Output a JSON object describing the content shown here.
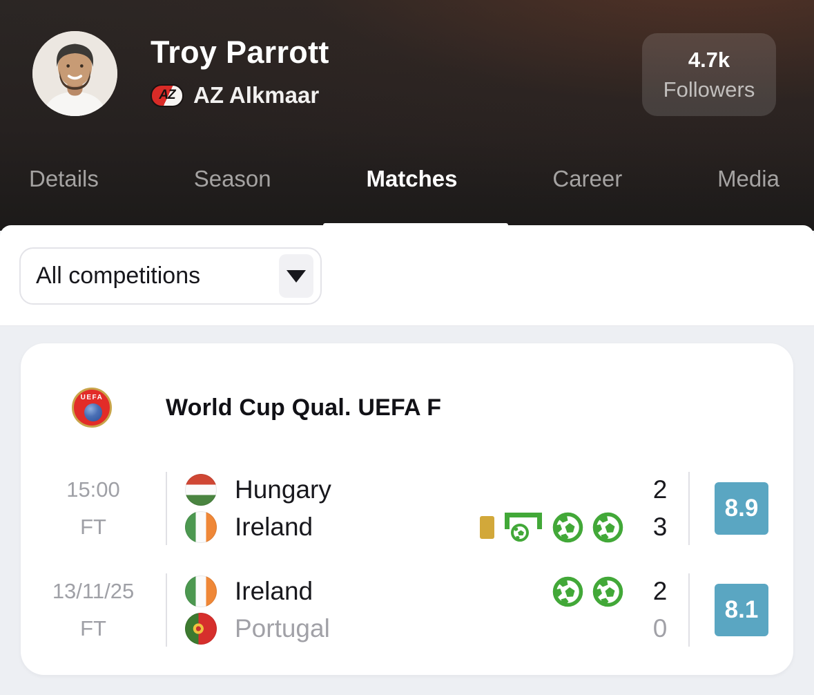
{
  "header": {
    "player_name": "Troy Parrott",
    "team_name": "AZ Alkmaar",
    "team_logo_text": "AZ",
    "followers_count": "4.7k",
    "followers_label": "Followers"
  },
  "tabs": [
    {
      "label": "Details",
      "active": false
    },
    {
      "label": "Season",
      "active": false
    },
    {
      "label": "Matches",
      "active": true
    },
    {
      "label": "Career",
      "active": false
    },
    {
      "label": "Media",
      "active": false
    }
  ],
  "filter": {
    "selected": "All competitions",
    "icon": "caret-down"
  },
  "matches_card": {
    "competition": {
      "name": "World Cup Qual. UEFA F",
      "logo": "uefa-logo",
      "logo_text": "UEFA"
    },
    "rows": [
      {
        "time": "15:00",
        "status": "FT",
        "rating": "8.9",
        "lines": [
          {
            "team": "Hungary",
            "flag": "hungary",
            "score": "2",
            "muted": false,
            "icons": []
          },
          {
            "team": "Ireland",
            "flag": "ireland",
            "score": "3",
            "muted": false,
            "icons": [
              "yellow-card",
              "penalty-goal",
              "goal",
              "goal"
            ]
          }
        ]
      },
      {
        "time": "13/11/25",
        "status": "FT",
        "rating": "8.1",
        "lines": [
          {
            "team": "Ireland",
            "flag": "ireland",
            "score": "2",
            "muted": false,
            "icons": [
              "goal",
              "goal"
            ]
          },
          {
            "team": "Portugal",
            "flag": "portugal",
            "score": "0",
            "muted": true,
            "icons": []
          }
        ]
      }
    ]
  },
  "colors": {
    "rating_badge": "#5aa6c2",
    "goal_green": "#42a838",
    "yellow_card": "#d2a83a",
    "page_background": "#edeff3",
    "header_background": "#262120"
  }
}
